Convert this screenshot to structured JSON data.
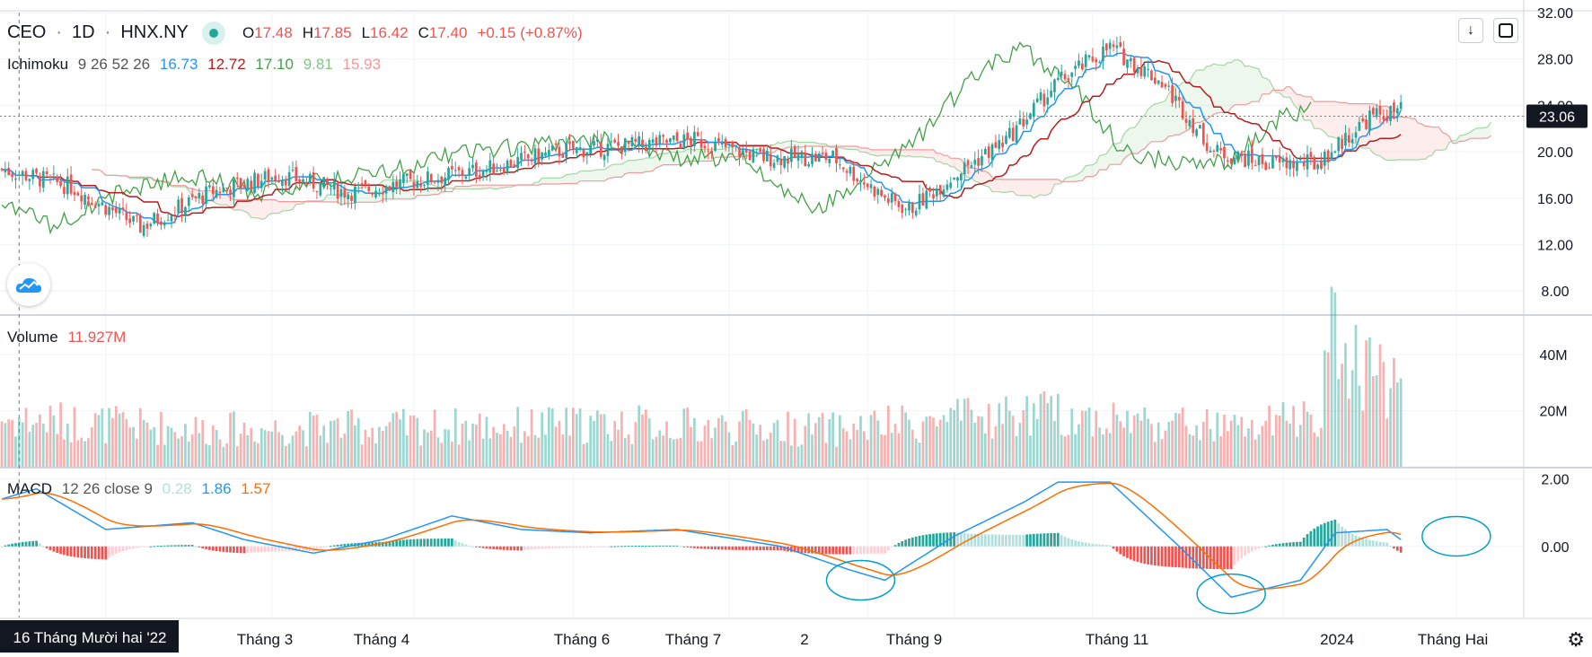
{
  "header": {
    "symbol": "CEO",
    "interval": "1D",
    "exchange": "HNX.NY",
    "ohlc": {
      "o_label": "O",
      "o": "17.48",
      "h_label": "H",
      "h": "17.85",
      "l_label": "L",
      "l": "16.42",
      "c_label": "C",
      "c": "17.40",
      "change": "+0.15 (+0.87%)"
    }
  },
  "ichimoku_legend": {
    "name": "Ichimoku",
    "params": "9 26 52 26",
    "v1": "16.73",
    "v2": "12.72",
    "v3": "17.10",
    "v4": "9.81",
    "v5": "15.93"
  },
  "volume_legend": {
    "name": "Volume",
    "value": "11.927M"
  },
  "macd_legend": {
    "name": "MACD",
    "params": "12 26 close 9",
    "hist": "0.28",
    "macd": "1.86",
    "signal": "1.57"
  },
  "price_axis": {
    "ticks": [
      "32.00",
      "28.00",
      "24.00",
      "20.00",
      "16.00",
      "12.00",
      "8.00"
    ],
    "last_price": "23.06"
  },
  "volume_axis": {
    "ticks": [
      "40M",
      "20M"
    ]
  },
  "macd_axis": {
    "ticks": [
      "2.00",
      "0.00"
    ]
  },
  "time_axis": {
    "cursor_label": "16 Tháng Mười hai '22",
    "ticks": [
      "Tháng 3",
      "Tháng 4",
      "Tháng 6",
      "Tháng 7",
      "2",
      "Tháng 9",
      "Tháng 11",
      "2024",
      "Tháng Hai"
    ]
  },
  "icons": {
    "download": "download-arrow-icon",
    "fullscreen": "fullscreen-icon",
    "settings": "gear-icon",
    "logo": "tradingview-cloud-icon"
  },
  "colors": {
    "up": "#26a69a",
    "down": "#ef5350",
    "tenkan": "#2196f3",
    "kijun": "#b71c1c",
    "lagging": "#43a047",
    "spanA": "#a5d6a7",
    "spanB": "#ef9a9a",
    "macd": "#2196f3",
    "signal": "#ff6d00",
    "annotation": "#00a0c8"
  },
  "chart_data": {
    "type": "candlestick",
    "price_range": [
      6,
      32
    ],
    "x_range_days": [
      0,
      440
    ],
    "price_anchors": {
      "days": [
        0,
        20,
        40,
        60,
        80,
        100,
        120,
        140,
        160,
        180,
        200,
        220,
        240,
        255,
        262,
        275,
        290,
        305,
        320,
        335,
        350,
        365,
        380,
        395,
        404
      ],
      "closes": [
        18.5,
        17.0,
        13.5,
        16.5,
        18.0,
        16.5,
        17.5,
        18.5,
        20.0,
        20.5,
        21.0,
        19.5,
        19.5,
        16.0,
        15.0,
        18.0,
        21.0,
        26.0,
        29.0,
        26.0,
        20.0,
        19.0,
        19.0,
        23.0,
        23.5
      ]
    },
    "volume_range_m": [
      0,
      50
    ],
    "volume_anchors": {
      "days": [
        0,
        60,
        120,
        180,
        240,
        300,
        360,
        380,
        384,
        404
      ],
      "values_m": [
        18,
        14,
        15,
        16,
        14,
        20,
        14,
        20,
        48,
        30
      ]
    },
    "macd_range": [
      -2.1,
      2.3
    ],
    "macd_anchors": {
      "days": [
        0,
        10,
        30,
        55,
        70,
        90,
        110,
        130,
        150,
        170,
        195,
        225,
        245,
        255,
        275,
        295,
        305,
        320,
        340,
        355,
        375,
        385,
        400,
        404
      ],
      "values": [
        1.4,
        1.7,
        0.5,
        0.7,
        0.2,
        -0.2,
        0.2,
        0.9,
        0.5,
        0.4,
        0.5,
        0.0,
        -0.7,
        -1.0,
        0.3,
        1.3,
        1.9,
        1.9,
        0.0,
        -1.5,
        -1.0,
        0.4,
        0.5,
        0.2
      ]
    },
    "annotations": [
      {
        "type": "ellipse",
        "day": 248,
        "value": -1.0
      },
      {
        "type": "ellipse",
        "day": 355,
        "value": -1.4
      },
      {
        "type": "ellipse",
        "day": 420,
        "value": 0.3
      }
    ]
  }
}
